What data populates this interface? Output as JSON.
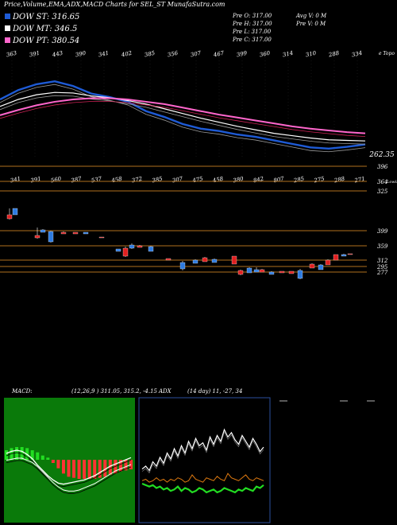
{
  "header": {
    "title": "Price,Volume,EMA,ADX,MACD Charts for SEL_ST MunafaSutra.com",
    "legend": [
      {
        "label": "DOW ST: 316.65",
        "color": "#1e5bd6"
      },
      {
        "label": "DOW MT: 346.5",
        "color": "#ffffff"
      },
      {
        "label": "DOW PT: 380.54",
        "color": "#ff66cc"
      }
    ],
    "ohlc": {
      "open": "Pre O: 317.00",
      "high": "Pre H: 317.00",
      "low": "Pre L: 317.00",
      "close": "Pre C: 317.00"
    },
    "volume": {
      "avg": "Avg V: 0 M",
      "pre": "Pre V: 0 M"
    }
  },
  "colors": {
    "dow_st": "#1e5bd6",
    "dow_mt": "#ffffff",
    "dow_pt": "#ff66cc",
    "ema_red": "#cc2255",
    "grid_line": "#b0701e",
    "candle_up": "#2e7be0",
    "candle_down": "#e02020",
    "macd_bg": "#0a7a0a",
    "adx_line": "#ffffff",
    "di_plus": "#22dd22",
    "di_minus": "#e07a10"
  },
  "chart_data": [
    {
      "type": "line",
      "name": "ema_price",
      "top_labels": [
        "363",
        "391",
        "443",
        "390",
        "341",
        "402",
        "385",
        "356",
        "307",
        "467",
        "399",
        "360",
        "314",
        "310",
        "288",
        "334"
      ],
      "top_right_label": "e Topo",
      "price_label": "262.35",
      "series": [
        {
          "name": "DOW ST",
          "color": "#1e5bd6",
          "values": [
            352,
            368,
            378,
            383,
            375,
            362,
            356,
            348,
            332,
            322,
            310,
            302,
            298,
            292,
            288,
            282,
            276,
            270,
            268,
            271,
            275
          ]
        },
        {
          "name": "DOW MT",
          "color": "#ffffff",
          "values": [
            340,
            352,
            360,
            364,
            363,
            358,
            355,
            350,
            344,
            336,
            328,
            320,
            313,
            306,
            300,
            294,
            290,
            286,
            283,
            282,
            281
          ]
        },
        {
          "name": "DOW PT",
          "color": "#ff66cc",
          "values": [
            325,
            334,
            342,
            348,
            352,
            354,
            354,
            352,
            348,
            344,
            338,
            332,
            326,
            321,
            316,
            311,
            306,
            302,
            299,
            296,
            294
          ]
        }
      ],
      "ylim": [
        250,
        420
      ]
    },
    {
      "type": "bar",
      "name": "volume_candles",
      "bottom_labels": [
        "341",
        "391",
        "560",
        "387",
        "537",
        "458",
        "372",
        "385",
        "307",
        "475",
        "458",
        "380",
        "842",
        "807",
        "285",
        "275",
        "288",
        "271"
      ],
      "price_levels": [
        "396",
        "364",
        "325",
        "399",
        "359",
        "312",
        "295",
        "277"
      ],
      "level_notes": {
        "364": "Lowin"
      },
      "ylim": [
        270,
        410
      ]
    },
    {
      "type": "line",
      "name": "macd",
      "title": "MACD:",
      "values_text": "(12,26,9 ) 311.05, 315.2, -4.15",
      "histogram": [
        9,
        11,
        12,
        12,
        11,
        9,
        7,
        4,
        2,
        -3,
        -8,
        -13,
        -16,
        -17,
        -18,
        -18,
        -18,
        -18,
        -17,
        -16,
        -14,
        -13,
        -11,
        -10,
        -9
      ],
      "macd_line": [
        6,
        8,
        9,
        8,
        5,
        1,
        -5,
        -10,
        -15,
        -19,
        -22,
        -23,
        -22,
        -21,
        -20,
        -19,
        -17,
        -15,
        -12,
        -9,
        -6,
        -4,
        -2,
        0,
        2
      ],
      "signal_line": [
        4,
        5,
        6,
        6,
        4,
        2,
        -2,
        -7,
        -12,
        -17,
        -21,
        -24,
        -25,
        -25,
        -24,
        -22,
        -20,
        -18,
        -15,
        -12,
        -9,
        -6,
        -4,
        -2,
        0
      ],
      "ylim": [
        -30,
        30
      ]
    },
    {
      "type": "line",
      "name": "adx",
      "title": "ADX",
      "values_text": "(14 day) 11, -27, 34",
      "adx": [
        22,
        24,
        21,
        27,
        24,
        30,
        26,
        33,
        29,
        36,
        31,
        38,
        33,
        41,
        36,
        43,
        38,
        40,
        35,
        44,
        39,
        45,
        41,
        49,
        44,
        47,
        42,
        39,
        45,
        41,
        37,
        43,
        39,
        34,
        37
      ],
      "di_plus": [
        12,
        11,
        10,
        11,
        9,
        10,
        8,
        9,
        7,
        8,
        10,
        7,
        9,
        8,
        6,
        7,
        9,
        8,
        6,
        7,
        8,
        6,
        7,
        9,
        8,
        7,
        6,
        8,
        7,
        9,
        8,
        7,
        10,
        9,
        11
      ],
      "di_minus": [
        14,
        15,
        13,
        14,
        16,
        14,
        15,
        13,
        15,
        14,
        16,
        15,
        13,
        14,
        18,
        15,
        14,
        13,
        16,
        15,
        14,
        17,
        15,
        14,
        19,
        16,
        15,
        14,
        16,
        18,
        15,
        14,
        16,
        15,
        14
      ],
      "ylim": [
        0,
        60
      ]
    }
  ]
}
